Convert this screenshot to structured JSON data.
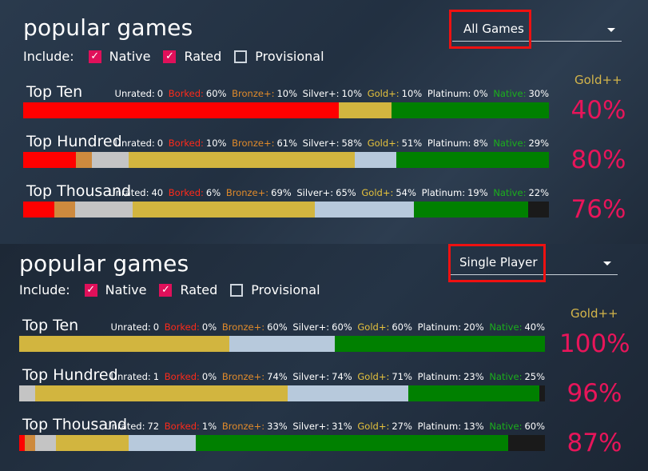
{
  "colors": {
    "borked": "#ff0000",
    "bronze": "#cd8a3e",
    "silver": "#c4c4c4",
    "gold": "#d2b53f",
    "platinum": "#b7c9dc",
    "native": "#008000",
    "unrated": "#1a1a1a",
    "accent": "#e8155a",
    "highlight": "#e11111"
  },
  "panels": [
    {
      "title": "popular games",
      "include_label": "Include:",
      "options": [
        {
          "label": "Native",
          "checked": true
        },
        {
          "label": "Rated",
          "checked": true
        },
        {
          "label": "Provisional",
          "checked": false
        }
      ],
      "dropdown": {
        "value": "All Games",
        "icon": "chevron-down-icon"
      },
      "gold_header": "Gold++",
      "rows": [
        {
          "name": "Top Ten",
          "stats": {
            "unrated_label": "Unrated:",
            "unrated": "0",
            "borked_label": "Borked:",
            "borked": "60%",
            "bronze_label": "Bronze+:",
            "bronze": "10%",
            "silver_label": "Silver+:",
            "silver": "10%",
            "gold_label": "Gold+:",
            "gold": "10%",
            "platinum_label": "Platinum:",
            "platinum": "0%",
            "native_label": "Native:",
            "native": "30%"
          },
          "bar": {
            "borked": 60,
            "bronze": 0,
            "silver": 0,
            "gold": 10,
            "platinum": 0,
            "native": 30,
            "unrated": 0
          },
          "gold_pct": "40%"
        },
        {
          "name": "Top Hundred",
          "stats": {
            "unrated_label": "Unrated:",
            "unrated": "0",
            "borked_label": "Borked:",
            "borked": "10%",
            "bronze_label": "Bronze+:",
            "bronze": "61%",
            "silver_label": "Silver+:",
            "silver": "58%",
            "gold_label": "Gold+:",
            "gold": "51%",
            "platinum_label": "Platinum:",
            "platinum": "8%",
            "native_label": "Native:",
            "native": "29%"
          },
          "bar": {
            "borked": 10,
            "bronze": 3,
            "silver": 7,
            "gold": 43,
            "platinum": 8,
            "native": 29,
            "unrated": 0
          },
          "gold_pct": "80%"
        },
        {
          "name": "Top Thousand",
          "stats": {
            "unrated_label": "Unrated:",
            "unrated": "40",
            "borked_label": "Borked:",
            "borked": "6%",
            "bronze_label": "Bronze+:",
            "bronze": "69%",
            "silver_label": "Silver+:",
            "silver": "65%",
            "gold_label": "Gold+:",
            "gold": "54%",
            "platinum_label": "Platinum:",
            "platinum": "19%",
            "native_label": "Native:",
            "native": "22%"
          },
          "bar": {
            "borked": 6,
            "bronze": 4,
            "silver": 11,
            "gold": 35,
            "platinum": 19,
            "native": 22,
            "unrated": 4
          },
          "gold_pct": "76%"
        }
      ]
    },
    {
      "title": "popular games",
      "include_label": "Include:",
      "options": [
        {
          "label": "Native",
          "checked": true
        },
        {
          "label": "Rated",
          "checked": true
        },
        {
          "label": "Provisional",
          "checked": false
        }
      ],
      "dropdown": {
        "value": "Single Player",
        "icon": "chevron-down-icon"
      },
      "gold_header": "Gold++",
      "rows": [
        {
          "name": "Top Ten",
          "stats": {
            "unrated_label": "Unrated:",
            "unrated": "0",
            "borked_label": "Borked:",
            "borked": "0%",
            "bronze_label": "Bronze+:",
            "bronze": "60%",
            "silver_label": "Silver+:",
            "silver": "60%",
            "gold_label": "Gold+:",
            "gold": "60%",
            "platinum_label": "Platinum:",
            "platinum": "20%",
            "native_label": "Native:",
            "native": "40%"
          },
          "bar": {
            "borked": 0,
            "bronze": 0,
            "silver": 0,
            "gold": 40,
            "platinum": 20,
            "native": 40,
            "unrated": 0
          },
          "gold_pct": "100%"
        },
        {
          "name": "Top Hundred",
          "stats": {
            "unrated_label": "Unrated:",
            "unrated": "1",
            "borked_label": "Borked:",
            "borked": "0%",
            "bronze_label": "Bronze+:",
            "bronze": "74%",
            "silver_label": "Silver+:",
            "silver": "74%",
            "gold_label": "Gold+:",
            "gold": "71%",
            "platinum_label": "Platinum:",
            "platinum": "23%",
            "native_label": "Native:",
            "native": "25%"
          },
          "bar": {
            "borked": 0,
            "bronze": 0,
            "silver": 3,
            "gold": 48,
            "platinum": 23,
            "native": 25,
            "unrated": 1
          },
          "gold_pct": "96%"
        },
        {
          "name": "Top Thousand",
          "stats": {
            "unrated_label": "Unrated:",
            "unrated": "72",
            "borked_label": "Borked:",
            "borked": "1%",
            "bronze_label": "Bronze+:",
            "bronze": "33%",
            "silver_label": "Silver+:",
            "silver": "31%",
            "gold_label": "Gold+:",
            "gold": "27%",
            "platinum_label": "Platinum:",
            "platinum": "13%",
            "native_label": "Native:",
            "native": "60%"
          },
          "bar": {
            "borked": 1,
            "bronze": 2,
            "silver": 4,
            "gold": 14,
            "platinum": 13,
            "native": 60,
            "unrated": 7
          },
          "gold_pct": "87%"
        }
      ]
    }
  ]
}
